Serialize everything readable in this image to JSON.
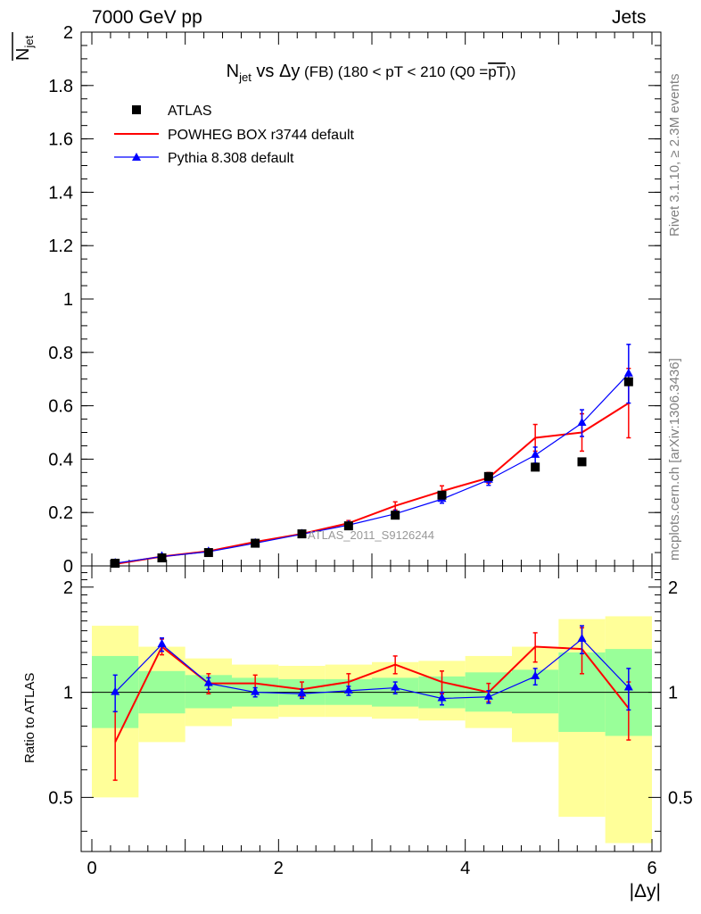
{
  "header": {
    "left": "7000 GeV pp",
    "right": "Jets"
  },
  "side": {
    "rivet": "Rivet 3.1.10, ≥ 2.3M events",
    "mcplots": "mcplots.cern.ch [arXiv:1306.3436]"
  },
  "watermark": "ATLAS_2011_S9126244",
  "chart_data": {
    "type": "line",
    "title_parts": {
      "n": "N",
      "n_sub": "jet",
      "vs": " vs ",
      "dy": "Δy",
      "rest": " (FB)  (180 < pT < 210 (Q0 =",
      "over": "pT",
      "close": "))"
    },
    "ylabel": {
      "n": "N",
      "sub": "jet"
    },
    "xlabel": "|Δy|",
    "ratio_label": "Ratio to ATLAS",
    "xlim": [
      0,
      6
    ],
    "main_ylim": [
      0,
      2
    ],
    "ratio_ylim": [
      0.35,
      2.3
    ],
    "ratio_scale": "log",
    "main_yticks": [
      "0",
      "0.2",
      "0.4",
      "0.6",
      "0.8",
      "1",
      "1.2",
      "1.4",
      "1.6",
      "1.8",
      "2"
    ],
    "ratio_yticks": [
      "0.5",
      "1",
      "2"
    ],
    "xticks": [
      "0",
      "2",
      "4",
      "6"
    ],
    "legend": {
      "placement": "top-left",
      "entries": [
        "ATLAS",
        "POWHEG BOX r3744 default",
        "Pythia 8.308 default"
      ]
    },
    "colors": {
      "atlas": "#000000",
      "powheg": "#ff0000",
      "pythia": "#0000ff",
      "band_outer": "#ffff99",
      "band_inner": "#99ff99"
    },
    "bins": [
      [
        0,
        0.5
      ],
      [
        0.5,
        1
      ],
      [
        1,
        1.5
      ],
      [
        1.5,
        2
      ],
      [
        2,
        2.5
      ],
      [
        2.5,
        3
      ],
      [
        3,
        3.5
      ],
      [
        3.5,
        4
      ],
      [
        4,
        4.5
      ],
      [
        4.5,
        5
      ],
      [
        5,
        5.5
      ],
      [
        5.5,
        6
      ]
    ],
    "x": [
      0.25,
      0.75,
      1.25,
      1.75,
      2.25,
      2.75,
      3.25,
      3.75,
      4.25,
      4.75,
      5.25,
      5.75
    ],
    "series": [
      {
        "name": "ATLAS",
        "values": [
          0.01,
          0.03,
          0.05,
          0.085,
          0.12,
          0.15,
          0.19,
          0.265,
          0.335,
          0.37,
          0.39,
          0.69
        ]
      },
      {
        "name": "POWHEG BOX r3744 default",
        "values": [
          0.007,
          0.035,
          0.055,
          0.09,
          0.12,
          0.16,
          0.225,
          0.28,
          0.33,
          0.48,
          0.5,
          0.61
        ],
        "err": [
          0.001,
          0.003,
          0.004,
          0.005,
          0.006,
          0.01,
          0.015,
          0.02,
          0.02,
          0.05,
          0.07,
          0.13
        ]
      },
      {
        "name": "Pythia 8.308 default",
        "values": [
          0.01,
          0.035,
          0.053,
          0.085,
          0.119,
          0.153,
          0.195,
          0.25,
          0.322,
          0.415,
          0.535,
          0.72
        ],
        "err": [
          0.001,
          0.003,
          0.003,
          0.004,
          0.005,
          0.007,
          0.01,
          0.015,
          0.02,
          0.03,
          0.05,
          0.11
        ]
      }
    ],
    "ratio_series": [
      {
        "name": "POWHEG BOX r3744 default",
        "values": [
          0.72,
          1.35,
          1.06,
          1.06,
          1.02,
          1.07,
          1.2,
          1.07,
          1.0,
          1.35,
          1.33,
          0.9
        ],
        "err": [
          0.16,
          0.07,
          0.07,
          0.06,
          0.05,
          0.06,
          0.07,
          0.08,
          0.06,
          0.13,
          0.2,
          0.17
        ]
      },
      {
        "name": "Pythia 8.308 default",
        "values": [
          1.0,
          1.37,
          1.06,
          1.0,
          0.99,
          1.01,
          1.03,
          0.96,
          0.97,
          1.11,
          1.42,
          1.03
        ],
        "err": [
          0.12,
          0.06,
          0.04,
          0.03,
          0.03,
          0.03,
          0.04,
          0.04,
          0.04,
          0.06,
          0.13,
          0.14
        ]
      }
    ],
    "band_outer": [
      [
        0.5,
        1.55
      ],
      [
        0.72,
        1.35
      ],
      [
        0.8,
        1.25
      ],
      [
        0.84,
        1.2
      ],
      [
        0.85,
        1.19
      ],
      [
        0.85,
        1.2
      ],
      [
        0.84,
        1.22
      ],
      [
        0.83,
        1.23
      ],
      [
        0.79,
        1.27
      ],
      [
        0.72,
        1.35
      ],
      [
        0.44,
        1.62
      ],
      [
        0.37,
        1.65
      ]
    ],
    "band_inner": [
      [
        0.79,
        1.27
      ],
      [
        0.87,
        1.15
      ],
      [
        0.9,
        1.12
      ],
      [
        0.91,
        1.1
      ],
      [
        0.92,
        1.09
      ],
      [
        0.92,
        1.09
      ],
      [
        0.91,
        1.1
      ],
      [
        0.9,
        1.11
      ],
      [
        0.88,
        1.14
      ],
      [
        0.87,
        1.16
      ],
      [
        0.77,
        1.3
      ],
      [
        0.75,
        1.33
      ]
    ]
  }
}
